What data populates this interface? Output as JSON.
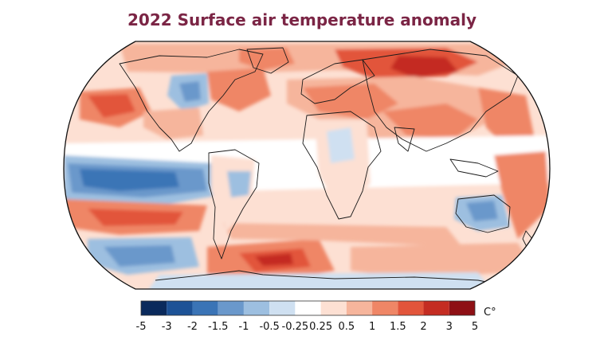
{
  "title": "2022 Surface air temperature anomaly",
  "colors": {
    "title": "#7b2545",
    "coast": "#1a1a1a",
    "outline": "#111111",
    "background": "#ffffff"
  },
  "legend": {
    "unit": "C°",
    "colors": [
      "#0a2a5c",
      "#1d5296",
      "#3a74b6",
      "#6a98cb",
      "#9dbfe0",
      "#cfe0f1",
      "#ffffff",
      "#fde0d3",
      "#f6b59c",
      "#ef8666",
      "#e2553b",
      "#c42c22",
      "#8e1015"
    ],
    "ticks": [
      "-5",
      "-3",
      "-2",
      "-1.5",
      "-1",
      "-0.5",
      "-0.25",
      "0.25",
      "0.5",
      "1",
      "1.5",
      "2",
      "3",
      "5"
    ]
  }
}
